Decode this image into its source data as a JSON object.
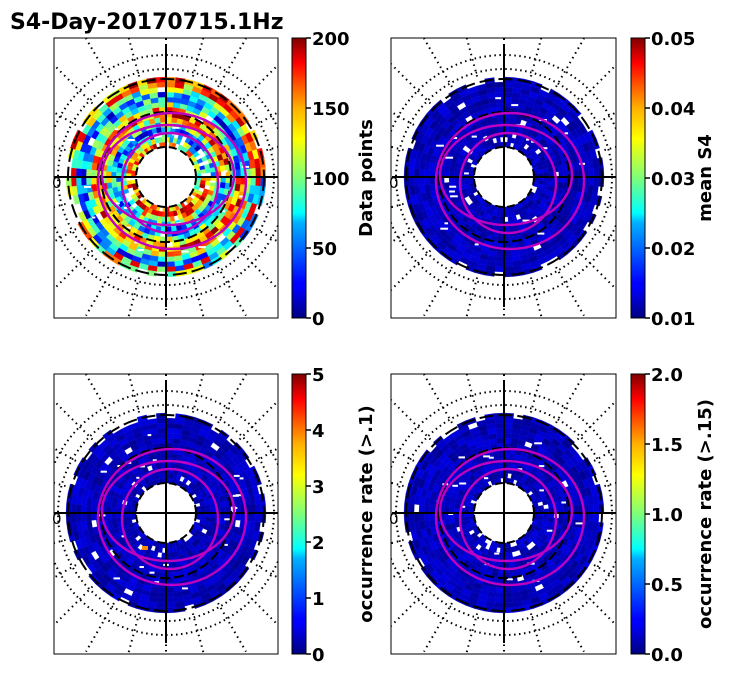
{
  "title": "S4-Day-20170715.1Hz",
  "chart_data": [
    {
      "type": "heatmap",
      "projection": "polar",
      "quantity": "Data points",
      "colorbar": {
        "label": "Data points",
        "ticks": [
          "0",
          "50",
          "100",
          "150",
          "200"
        ],
        "range": [
          0,
          200
        ],
        "colormap": "jet"
      },
      "angle_label": "0",
      "fill_profile": "dense"
    },
    {
      "type": "heatmap",
      "projection": "polar",
      "quantity": "mean S4",
      "colorbar": {
        "label": "mean S4",
        "ticks": [
          "0.01",
          "0.02",
          "0.03",
          "0.04",
          "0.05"
        ],
        "range": [
          0.01,
          0.05
        ],
        "colormap": "jet"
      },
      "angle_label": "0",
      "fill_profile": "low"
    },
    {
      "type": "heatmap",
      "projection": "polar",
      "quantity": "occurrence rate (>.1)",
      "colorbar": {
        "label": "occurrence rate (>.1)",
        "ticks": [
          "0",
          "1",
          "2",
          "3",
          "4",
          "5"
        ],
        "range": [
          0,
          5
        ],
        "colormap": "jet"
      },
      "angle_label": "0",
      "fill_profile": "low",
      "highlight": "a few orange cells near the inner ring (lower-left)"
    },
    {
      "type": "heatmap",
      "projection": "polar",
      "quantity": "occurrence rate (>.15)",
      "colorbar": {
        "label": "occurrence rate (>.15)",
        "ticks": [
          "0.0",
          "0.5",
          "1.0",
          "1.5",
          "2.0"
        ],
        "range": [
          0.0,
          2.0
        ],
        "colormap": "jet"
      },
      "angle_label": "0",
      "fill_profile": "low"
    }
  ]
}
